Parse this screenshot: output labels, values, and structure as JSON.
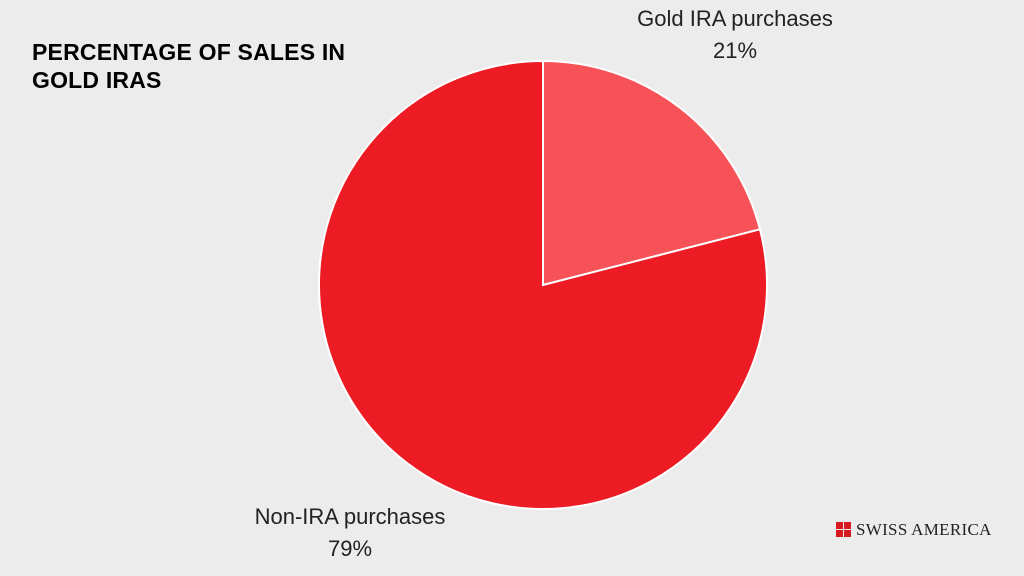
{
  "chart_data": {
    "type": "pie",
    "title": "PERCENTAGE  OF SALES IN GOLD IRAS",
    "categories": [
      "Gold IRA purchases",
      "Non-IRA purchases"
    ],
    "values": [
      21,
      79
    ],
    "value_labels": [
      "21%",
      "79%"
    ],
    "colors": [
      "#f75257",
      "#ed1c24"
    ]
  },
  "logo": {
    "text": "SWISS AMERICA"
  }
}
